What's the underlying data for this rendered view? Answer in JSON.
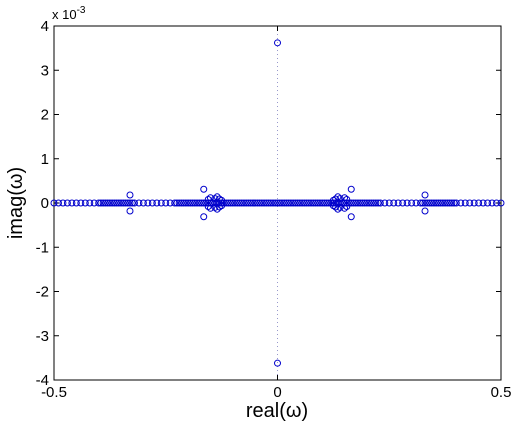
{
  "chart_data": {
    "type": "scatter",
    "title": "",
    "xlabel": "real(ω)",
    "ylabel": "imag(ω)",
    "xlim": [
      -0.5,
      0.5
    ],
    "ylim": [
      -4,
      4
    ],
    "y_scale_note": "x 10",
    "y_scale_exponent": "-3",
    "x_ticks": [
      "-0.5",
      "0",
      "0.5"
    ],
    "y_ticks": [
      "-4",
      "-3",
      "-2",
      "-1",
      "0",
      "1",
      "2",
      "3",
      "4"
    ],
    "x_tick_values": [
      -0.5,
      0,
      0.5
    ],
    "y_tick_values": [
      -4,
      -3,
      -2,
      -1,
      0,
      1,
      2,
      3,
      4
    ],
    "grid": false,
    "legend": "none",
    "marker": "open-circle",
    "marker_color": "#0000cc",
    "axis_color": "#000000",
    "center_line_color": "#9999cc",
    "series": [
      {
        "x": [
          -0.5,
          -0.49,
          -0.48,
          -0.47,
          -0.46,
          -0.45,
          -0.44,
          -0.43,
          -0.42,
          -0.41,
          -0.4,
          -0.395,
          -0.39,
          -0.385,
          -0.38,
          -0.375,
          -0.37,
          -0.365,
          -0.36,
          -0.355,
          -0.35,
          -0.345,
          -0.34,
          -0.335,
          -0.33,
          -0.325,
          -0.32,
          -0.31,
          -0.3,
          -0.29,
          -0.28,
          -0.27,
          -0.26,
          -0.25,
          -0.24,
          -0.23,
          -0.225,
          -0.22,
          -0.215,
          -0.21,
          -0.205,
          -0.2,
          -0.195,
          -0.19,
          -0.185,
          -0.18,
          -0.175,
          -0.17,
          -0.165,
          -0.16,
          -0.155,
          -0.15,
          -0.145,
          -0.14,
          -0.135,
          -0.13,
          -0.125,
          -0.12,
          -0.115,
          -0.11,
          -0.105,
          -0.1,
          -0.095,
          -0.09,
          -0.085,
          -0.08,
          -0.075,
          -0.07,
          -0.065,
          -0.06,
          -0.055,
          -0.05,
          -0.045,
          -0.04,
          -0.035,
          -0.03,
          -0.025,
          -0.02,
          -0.015,
          -0.01,
          -0.005,
          0,
          0.005,
          0.01,
          0.015,
          0.02,
          0.025,
          0.03,
          0.035,
          0.04,
          0.045,
          0.05,
          0.055,
          0.06,
          0.065,
          0.07,
          0.075,
          0.08,
          0.085,
          0.09,
          0.095,
          0.1,
          0.105,
          0.11,
          0.115,
          0.12,
          0.125,
          0.13,
          0.135,
          0.14,
          0.145,
          0.15,
          0.155,
          0.16,
          0.165,
          0.17,
          0.175,
          0.18,
          0.185,
          0.19,
          0.195,
          0.2,
          0.205,
          0.21,
          0.215,
          0.22,
          0.225,
          0.23,
          0.24,
          0.25,
          0.26,
          0.27,
          0.28,
          0.29,
          0.3,
          0.31,
          0.32,
          0.325,
          0.33,
          0.335,
          0.34,
          0.345,
          0.35,
          0.355,
          0.36,
          0.365,
          0.37,
          0.375,
          0.38,
          0.385,
          0.39,
          0.395,
          0.4,
          0.41,
          0.42,
          0.43,
          0.44,
          0.45,
          0.46,
          0.47,
          0.48,
          0.49,
          0.5,
          -0.33,
          -0.33,
          0.33,
          0.33,
          -0.165,
          -0.165,
          0.165,
          0.165,
          -0.155,
          -0.15,
          -0.14,
          -0.135,
          -0.13,
          -0.125,
          -0.155,
          -0.15,
          -0.14,
          -0.135,
          -0.13,
          -0.125,
          0.125,
          0.13,
          0.135,
          0.14,
          0.15,
          0.155,
          0.125,
          0.13,
          0.135,
          0.14,
          0.15,
          0.155,
          0,
          0
        ],
        "y": [
          0,
          0,
          0,
          0,
          0,
          0,
          0,
          0,
          0,
          0,
          0,
          0,
          0,
          0,
          0,
          0,
          0,
          0,
          0,
          0,
          0,
          0,
          0,
          0,
          0,
          0,
          0,
          0,
          0,
          0,
          0,
          0,
          0,
          0,
          0,
          0,
          0,
          0,
          0,
          0,
          0,
          0,
          0,
          0,
          0,
          0,
          0,
          0,
          0,
          0,
          0,
          0,
          0,
          0,
          0,
          0,
          0,
          0,
          0,
          0,
          0,
          0,
          0,
          0,
          0,
          0,
          0,
          0,
          0,
          0,
          0,
          0,
          0,
          0,
          0,
          0,
          0,
          0,
          0,
          0,
          0,
          0,
          0,
          0,
          0,
          0,
          0,
          0,
          0,
          0,
          0,
          0,
          0,
          0,
          0,
          0,
          0,
          0,
          0,
          0,
          0,
          0,
          0,
          0,
          0,
          0,
          0,
          0,
          0,
          0,
          0,
          0,
          0,
          0,
          0,
          0,
          0,
          0,
          0,
          0,
          0,
          0,
          0,
          0,
          0,
          0,
          0,
          0,
          0,
          0,
          0,
          0,
          0,
          0,
          0,
          0,
          0,
          0,
          0,
          0,
          0,
          0,
          0,
          0,
          0,
          0,
          0,
          0,
          0,
          0,
          0,
          0,
          0,
          0,
          0,
          0,
          0,
          0,
          0,
          0,
          0,
          0,
          0,
          0.18,
          -0.18,
          0.18,
          -0.18,
          0.31,
          -0.31,
          0.31,
          -0.31,
          0.08,
          0.12,
          0.1,
          0.14,
          0.09,
          0.06,
          -0.08,
          -0.12,
          -0.1,
          -0.14,
          -0.09,
          -0.06,
          0.06,
          0.09,
          0.14,
          0.1,
          0.12,
          0.08,
          -0.06,
          -0.09,
          -0.14,
          -0.1,
          -0.12,
          -0.08,
          3.62,
          -3.62
        ]
      }
    ]
  }
}
